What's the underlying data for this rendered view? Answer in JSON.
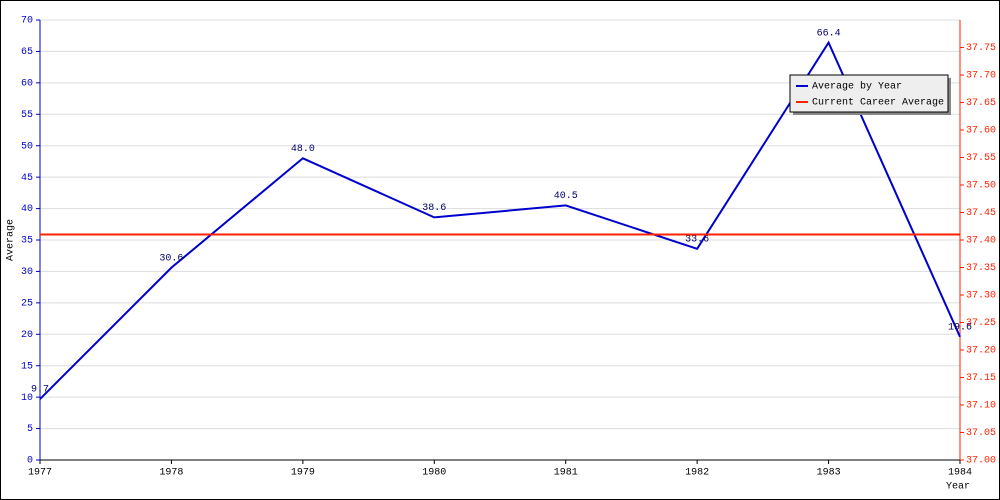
{
  "chart_data": {
    "type": "line",
    "x_label": "Year",
    "y_label": "Average",
    "x": [
      1977,
      1978,
      1979,
      1980,
      1981,
      1982,
      1983,
      1984
    ],
    "xlim": [
      1977,
      1984
    ],
    "xticks": [
      1977,
      1978,
      1979,
      1980,
      1981,
      1982,
      1983,
      1984
    ],
    "ylim": [
      0,
      70
    ],
    "yticks": [
      0,
      5,
      10,
      15,
      20,
      25,
      30,
      35,
      40,
      45,
      50,
      55,
      60,
      65,
      70
    ],
    "y2lim": [
      37,
      37.8
    ],
    "y2ticks": [
      {
        "value": 37,
        "label": "37.00"
      },
      {
        "value": 37.05,
        "label": "37.05"
      },
      {
        "value": 37.1,
        "label": "37.10"
      },
      {
        "value": 37.15,
        "label": "37.15"
      },
      {
        "value": 37.2,
        "label": "37.20"
      },
      {
        "value": 37.25,
        "label": "37.25"
      },
      {
        "value": 37.3,
        "label": "37.30"
      },
      {
        "value": 37.35,
        "label": "37.35"
      },
      {
        "value": 37.4,
        "label": "37.40"
      },
      {
        "value": 37.45,
        "label": "37.45"
      },
      {
        "value": 37.5,
        "label": "37.50"
      },
      {
        "value": 37.55,
        "label": "37.55"
      },
      {
        "value": 37.6,
        "label": "37.60"
      },
      {
        "value": 37.65,
        "label": "37.65"
      },
      {
        "value": 37.7,
        "label": "37.70"
      },
      {
        "value": 37.75,
        "label": "37.75"
      }
    ],
    "grid": true,
    "legend": "upper right",
    "series": [
      {
        "name": "Average by Year",
        "color": "#0000cc",
        "values": [
          9.7,
          30.6,
          48,
          38.6,
          40.5,
          33.6,
          66.4,
          19.6
        ],
        "value_labels": [
          "9.7",
          "30.6",
          "48.0",
          "38.6",
          "40.5",
          "33.6",
          "66.4",
          "19.6"
        ]
      },
      {
        "name": "Current Career Average",
        "color": "#ff2200",
        "axis": "y2",
        "values": [
          37.41,
          37.41,
          37.41,
          37.41,
          37.41,
          37.41,
          37.41,
          37.41
        ]
      }
    ]
  }
}
